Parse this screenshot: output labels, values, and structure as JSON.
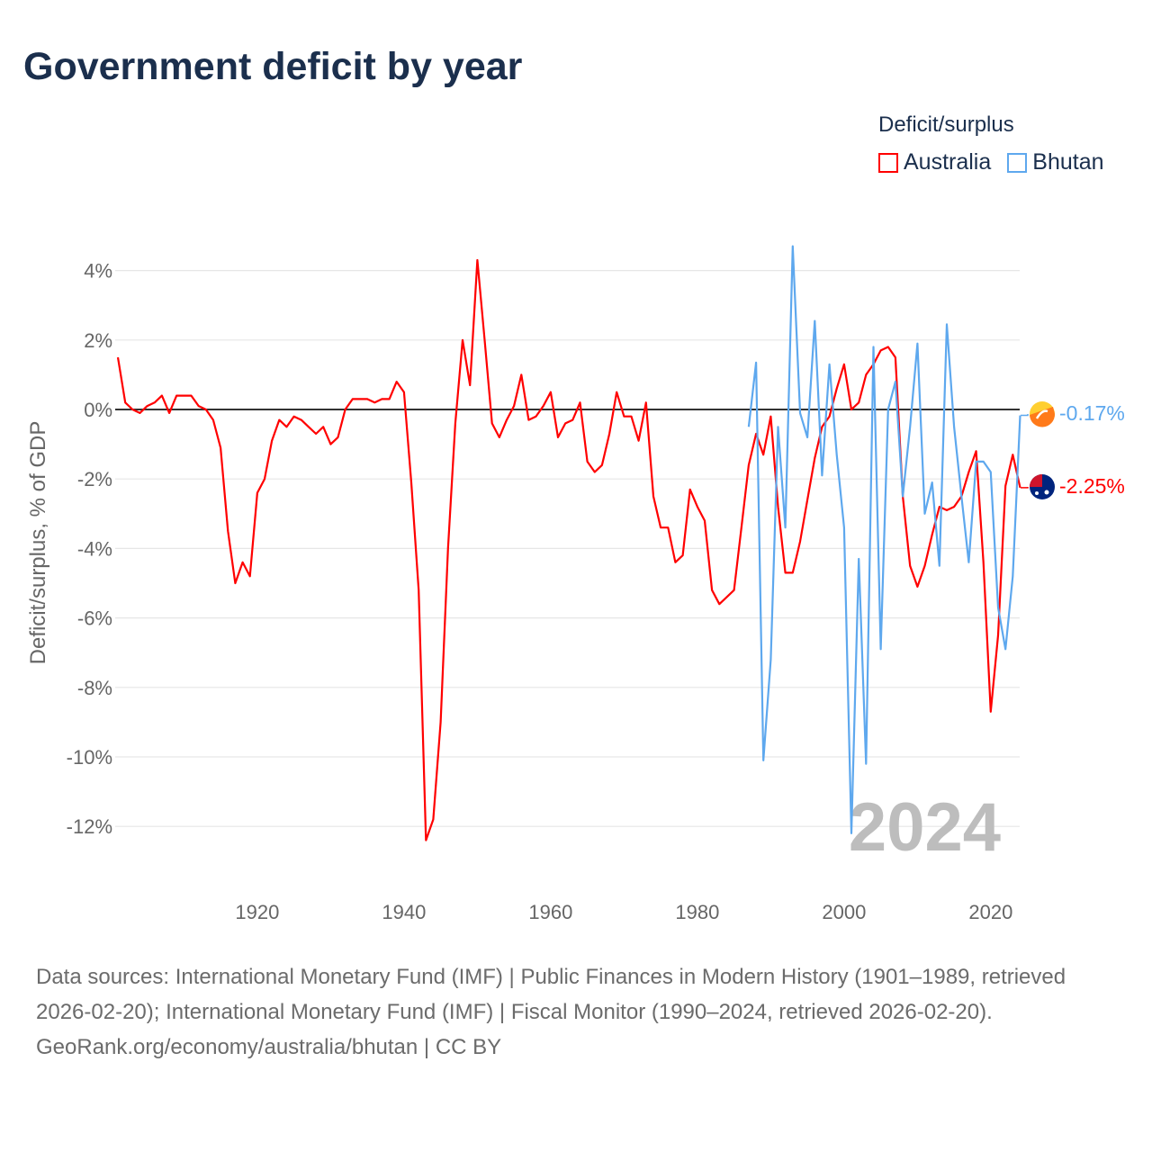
{
  "title": "Government deficit by year",
  "legend": {
    "title": "Deficit/surplus",
    "items": [
      {
        "name": "Australia",
        "color": "#ff0000"
      },
      {
        "name": "Bhutan",
        "color": "#5ea8ee"
      }
    ]
  },
  "chart_data": {
    "type": "line",
    "title": "Government deficit by year",
    "xlabel": "",
    "ylabel": "Deficit/surplus, % of GDP",
    "xlim": [
      1901,
      2024
    ],
    "ylim": [
      -13,
      5
    ],
    "yticks": [
      4,
      2,
      0,
      -2,
      -4,
      -6,
      -8,
      -10,
      -12
    ],
    "ytick_labels": [
      "4%",
      "2%",
      "0%",
      "-2%",
      "-4%",
      "-6%",
      "-8%",
      "-10%",
      "-12%"
    ],
    "xticks": [
      1920,
      1940,
      1960,
      1980,
      2000,
      2020
    ],
    "xtick_labels": [
      "1920",
      "1940",
      "1960",
      "1980",
      "2000",
      "2020"
    ],
    "grid": true,
    "legend_position": "top-right",
    "year_label": "2024",
    "series": [
      {
        "name": "Australia",
        "color": "#ff0000",
        "start_year": 1901,
        "end_label": "-2.25%",
        "values": [
          1.5,
          0.2,
          0.0,
          -0.1,
          0.1,
          0.2,
          0.4,
          -0.1,
          0.4,
          0.4,
          0.4,
          0.1,
          0.0,
          -0.3,
          -1.1,
          -3.5,
          -5.0,
          -4.4,
          -4.8,
          -2.4,
          -2.0,
          -0.9,
          -0.3,
          -0.5,
          -0.2,
          -0.3,
          -0.5,
          -0.7,
          -0.5,
          -1.0,
          -0.8,
          0.0,
          0.3,
          0.3,
          0.3,
          0.2,
          0.3,
          0.3,
          0.8,
          0.5,
          -2.1,
          -5.2,
          -12.4,
          -11.8,
          -9.0,
          -4.0,
          -0.4,
          2.0,
          0.7,
          4.3,
          2.0,
          -0.4,
          -0.8,
          -0.3,
          0.1,
          1.0,
          -0.3,
          -0.2,
          0.1,
          0.5,
          -0.8,
          -0.4,
          -0.3,
          0.2,
          -1.5,
          -1.8,
          -1.6,
          -0.7,
          0.5,
          -0.2,
          -0.2,
          -0.9,
          0.2,
          -2.5,
          -3.4,
          -3.4,
          -4.4,
          -4.2,
          -2.3,
          -2.8,
          -3.2,
          -5.2,
          -5.6,
          -5.4,
          -5.2,
          -3.4,
          -1.6,
          -0.7,
          -1.3,
          -0.2,
          -2.8,
          -4.7,
          -4.7,
          -3.8,
          -2.6,
          -1.4,
          -0.5,
          -0.2,
          0.6,
          1.3,
          0.0,
          0.2,
          1.0,
          1.3,
          1.7,
          1.8,
          1.5,
          -2.5,
          -4.5,
          -5.1,
          -4.5,
          -3.6,
          -2.8,
          -2.9,
          -2.8,
          -2.5,
          -1.8,
          -1.2,
          -4.4,
          -8.7,
          -6.5,
          -2.2,
          -1.3,
          -2.25
        ]
      },
      {
        "name": "Bhutan",
        "color": "#5ea8ee",
        "start_year": 1987,
        "end_label": "-0.17%",
        "values": [
          -0.5,
          1.35,
          -10.1,
          -7.2,
          -0.5,
          -3.4,
          4.7,
          -0.1,
          -0.8,
          2.55,
          -1.9,
          1.3,
          -1.3,
          -3.4,
          -12.2,
          -4.3,
          -10.2,
          1.8,
          -6.9,
          0.0,
          0.8,
          -2.5,
          -0.5,
          1.9,
          -3.0,
          -2.1,
          -4.5,
          2.45,
          -0.5,
          -2.5,
          -4.4,
          -1.5,
          -1.5,
          -1.8,
          -5.7,
          -6.9,
          -4.8,
          -0.17
        ]
      }
    ]
  },
  "footer": {
    "sources": "Data sources: International Monetary Fund (IMF) | Public Finances in Modern History (1901–1989, retrieved 2026-02-20); International Monetary Fund (IMF) | Fiscal Monitor (1990–2024, retrieved 2026-02-20).",
    "credit": "GeoRank.org/economy/australia/bhutan | CC BY"
  }
}
